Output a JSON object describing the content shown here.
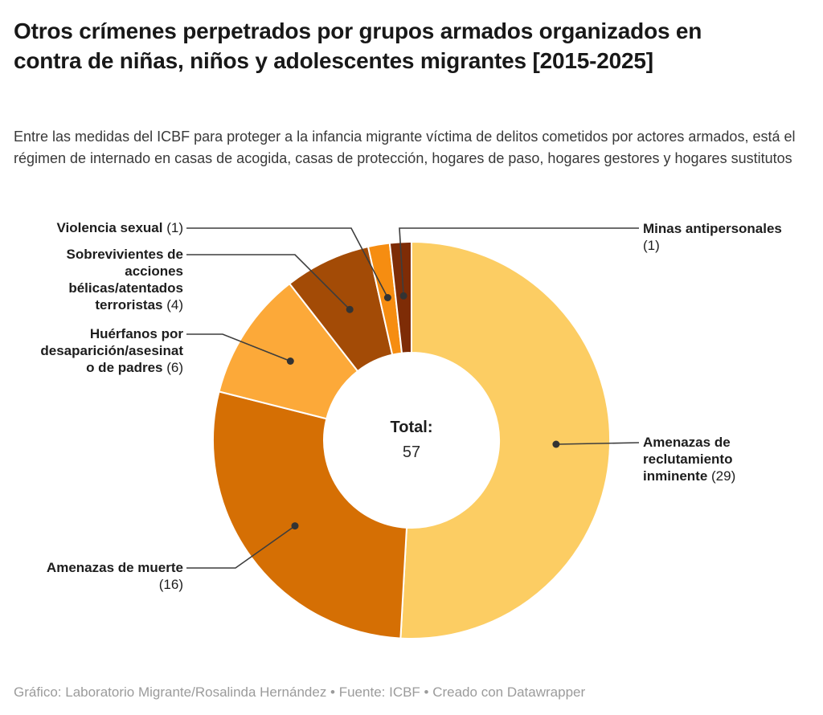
{
  "header": {
    "title": "Otros crímenes perpetrados por grupos armados organizados en contra de niñas, niños y adolescentes migrantes [2015-2025]",
    "subtitle": "Entre las medidas del ICBF para proteger a la infancia migrante víctima de delitos cometidos por actores armados, está el régimen de internado en casas de acogida, casas de protección, hogares de paso, hogares gestores y hogares sustitutos"
  },
  "chart_data": {
    "type": "pie",
    "variant": "donut",
    "title": "Otros crímenes perpetrados por grupos armados organizados en contra de niñas, niños y adolescentes migrantes [2015-2025]",
    "total": 57,
    "center": {
      "label": "Total:",
      "value": "57"
    },
    "categories": [
      "Amenazas de reclutamiento inminente",
      "Amenazas de muerte",
      "Huérfanos por desaparición/asesinato de padres",
      "Sobrevivientes de acciones bélicas/atentados terroristas",
      "Violencia sexual",
      "Minas antipersonales"
    ],
    "values": [
      29,
      16,
      6,
      4,
      1,
      1
    ],
    "colors": [
      "#FCCD63",
      "#D56F04",
      "#FCA939",
      "#A34B06",
      "#F68D11",
      "#7E2C06"
    ],
    "segments": [
      {
        "key": "amenazas-de-reclutamiento-inminente",
        "label": "Amenazas de reclutamiento inminente",
        "value": 29,
        "color": "#FCCD63",
        "label_lines": [
          "Amenazas de",
          "reclutamiento",
          "inminente (29)"
        ],
        "side": "right"
      },
      {
        "key": "amenazas-de-muerte",
        "label": "Amenazas de muerte",
        "value": 16,
        "color": "#D56F04",
        "label_lines": [
          "Amenazas de muerte",
          "(16)"
        ],
        "side": "left"
      },
      {
        "key": "huerfanos-por-desaparicion-asesinato-de-padres",
        "label": "Huérfanos por desaparición/asesinato de padres",
        "value": 6,
        "color": "#FCA939",
        "label_lines": [
          "Huérfanos por",
          "desaparición/asesinat",
          "o de padres (6)"
        ],
        "side": "left"
      },
      {
        "key": "sobrevivientes-de-acciones-belicas-atentados-terroristas",
        "label": "Sobrevivientes de acciones bélicas/atentados terroristas",
        "value": 4,
        "color": "#A34B06",
        "label_lines": [
          "Sobrevivientes de",
          "acciones",
          "bélicas/atentados",
          "terroristas (4)"
        ],
        "side": "left"
      },
      {
        "key": "violencia-sexual",
        "label": "Violencia sexual",
        "value": 1,
        "color": "#F68D11",
        "label_lines": [
          "Violencia sexual (1)"
        ],
        "side": "left"
      },
      {
        "key": "minas-antipersonales",
        "label": "Minas antipersonales",
        "value": 1,
        "color": "#7E2C06",
        "label_lines": [
          "Minas antipersonales",
          "(1)"
        ],
        "side": "right"
      }
    ],
    "legend_position": "none",
    "grid": false
  },
  "footer": {
    "credit": "Gráfico: Laboratorio Migrante/Rosalinda Hernández • Fuente: ICBF • Creado con Datawrapper"
  }
}
